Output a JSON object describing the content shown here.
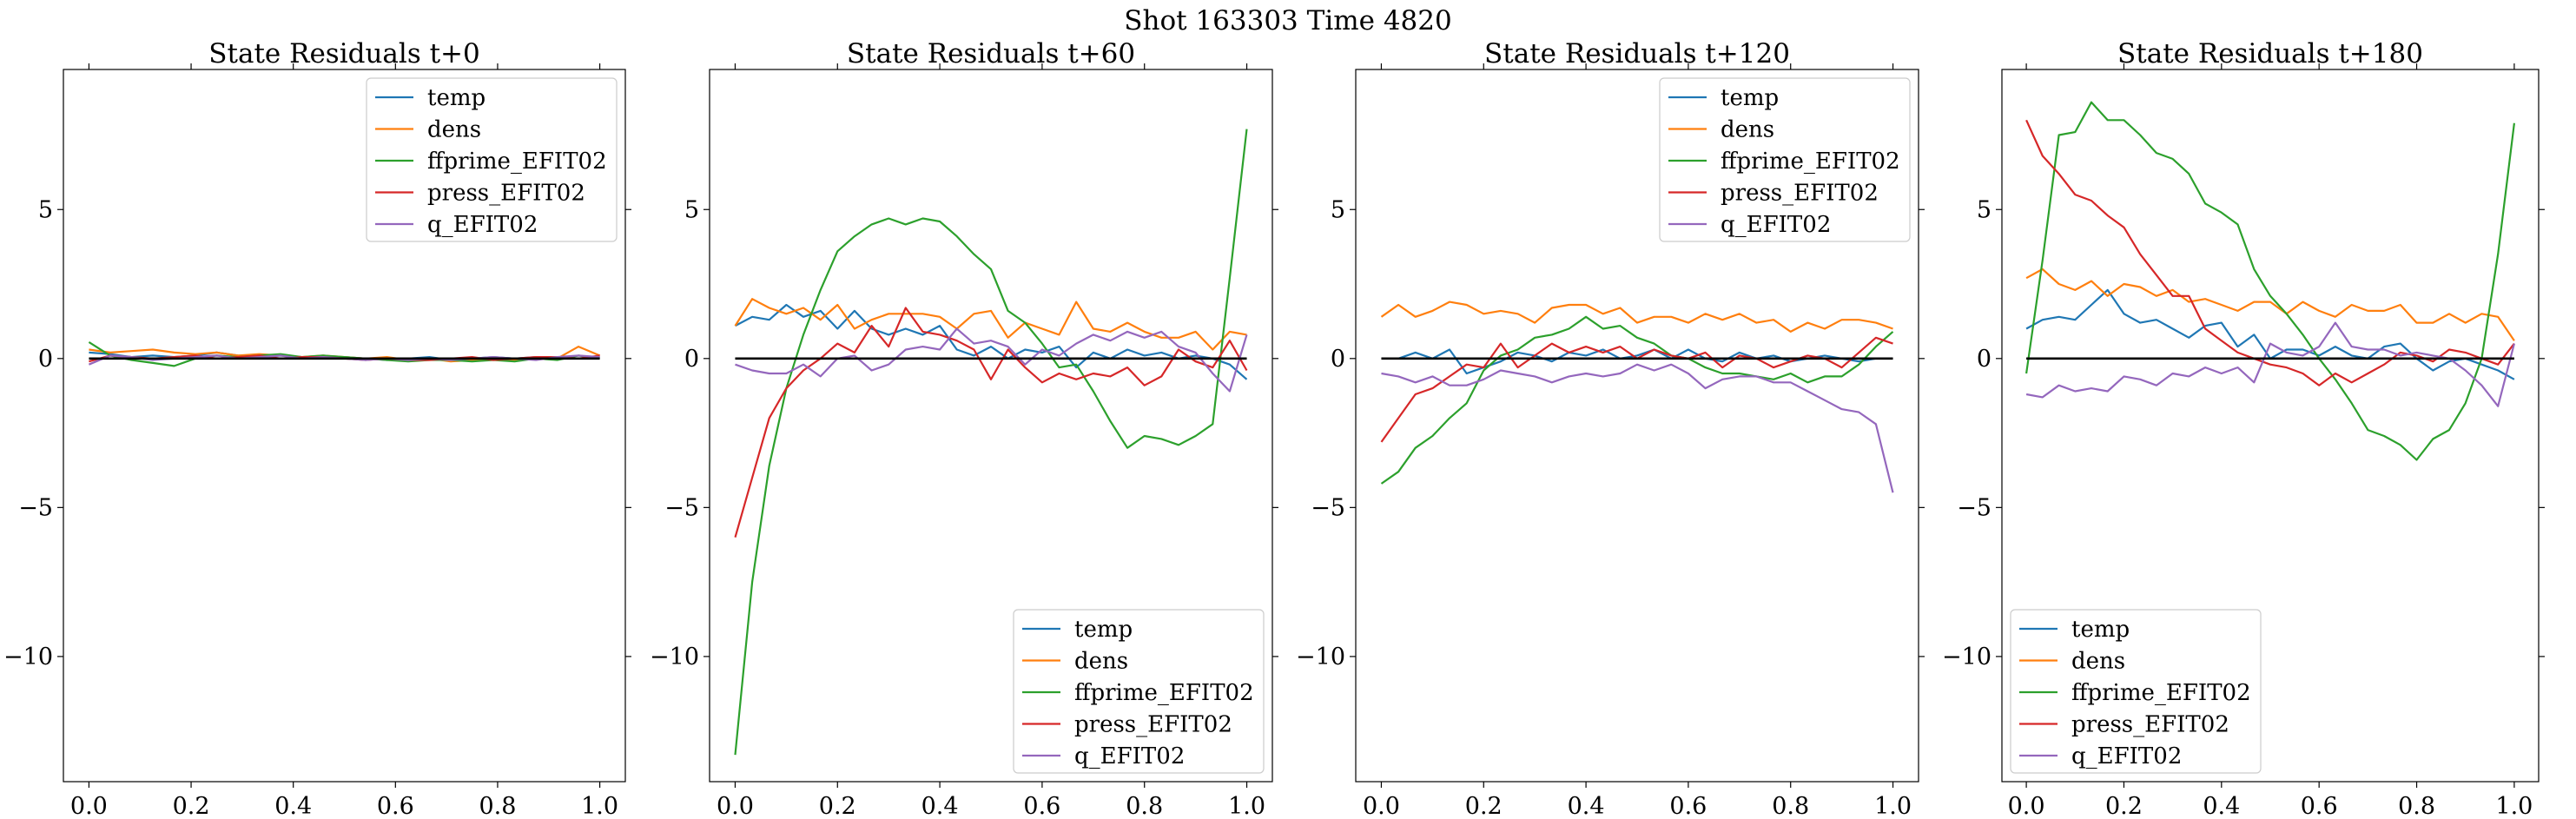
{
  "suptitle": "Shot 163303   Time 4820",
  "colors": {
    "temp": "#1f77b4",
    "dens": "#ff7f0e",
    "ffprime_EFIT02": "#2ca02c",
    "press_EFIT02": "#d62728",
    "q_EFIT02": "#9467bd",
    "zero_line": "#000000"
  },
  "chart_data": [
    {
      "type": "line",
      "title": "State Residuals t+0",
      "xlabel": "",
      "ylabel": "",
      "xlim": [
        -0.05,
        1.05
      ],
      "ylim": [
        -14.2,
        9.7
      ],
      "xticks": [
        "0.0",
        "0.2",
        "0.4",
        "0.6",
        "0.8",
        "1.0"
      ],
      "yticks": [
        "5",
        "0",
        "−5",
        "−10"
      ],
      "ytick_values": [
        5,
        0,
        -5,
        -10
      ],
      "legend_loc": "upper-right",
      "grid": false,
      "zero_line": true,
      "x": [
        0,
        0.0417,
        0.0833,
        0.125,
        0.1667,
        0.2083,
        0.25,
        0.2917,
        0.3333,
        0.375,
        0.4167,
        0.4583,
        0.5,
        0.5417,
        0.5833,
        0.625,
        0.6667,
        0.7083,
        0.75,
        0.7917,
        0.8333,
        0.875,
        0.9167,
        0.9583,
        1.0
      ],
      "series": [
        {
          "name": "temp",
          "values": [
            0.2,
            0.15,
            0.05,
            0.1,
            0.05,
            0.1,
            0.2,
            0.1,
            0.05,
            0.1,
            0.05,
            0.0,
            0.05,
            0.0,
            -0.05,
            0.0,
            0.05,
            -0.05,
            0.0,
            0.05,
            0.0,
            0.05,
            0.05,
            0.0,
            0.05
          ]
        },
        {
          "name": "dens",
          "values": [
            0.3,
            0.2,
            0.25,
            0.3,
            0.2,
            0.15,
            0.2,
            0.1,
            0.15,
            0.1,
            0.05,
            0.1,
            0.05,
            0.0,
            0.05,
            -0.05,
            0.0,
            -0.1,
            -0.05,
            0.0,
            -0.05,
            0.05,
            0.0,
            0.4,
            0.1
          ]
        },
        {
          "name": "ffprime_EFIT02",
          "values": [
            0.55,
            0.1,
            -0.05,
            -0.15,
            -0.25,
            0.0,
            0.1,
            0.05,
            0.1,
            0.15,
            0.05,
            0.1,
            0.05,
            0.0,
            -0.05,
            -0.1,
            -0.05,
            -0.05,
            -0.1,
            -0.05,
            -0.1,
            0.0,
            -0.05,
            0.1,
            0.0
          ]
        },
        {
          "name": "press_EFIT02",
          "values": [
            -0.1,
            0.1,
            0.05,
            0.0,
            0.05,
            0.1,
            0.0,
            0.05,
            0.1,
            0.0,
            0.05,
            0.05,
            0.0,
            -0.05,
            0.0,
            -0.05,
            -0.05,
            0.0,
            0.05,
            -0.05,
            0.0,
            0.05,
            0.05,
            0.0,
            0.1
          ]
        },
        {
          "name": "q_EFIT02",
          "values": [
            -0.2,
            0.1,
            0.05,
            -0.05,
            0.0,
            0.05,
            0.1,
            0.0,
            0.05,
            0.1,
            0.0,
            0.05,
            0.0,
            -0.05,
            0.0,
            -0.05,
            0.0,
            -0.05,
            0.0,
            0.05,
            0.0,
            -0.05,
            0.05,
            0.1,
            0.05
          ]
        }
      ]
    },
    {
      "type": "line",
      "title": "State Residuals t+60",
      "xlabel": "",
      "ylabel": "",
      "xlim": [
        -0.05,
        1.05
      ],
      "ylim": [
        -14.2,
        9.7
      ],
      "xticks": [
        "0.0",
        "0.2",
        "0.4",
        "0.6",
        "0.8",
        "1.0"
      ],
      "yticks": [
        "5",
        "0",
        "−5",
        "−10"
      ],
      "ytick_values": [
        5,
        0,
        -5,
        -10
      ],
      "legend_loc": "lower-right",
      "grid": false,
      "zero_line": true,
      "x": [
        0,
        0.0333,
        0.0667,
        0.1,
        0.1333,
        0.1667,
        0.2,
        0.2333,
        0.2667,
        0.3,
        0.3333,
        0.3667,
        0.4,
        0.4333,
        0.4667,
        0.5,
        0.5333,
        0.5667,
        0.6,
        0.6333,
        0.6667,
        0.7,
        0.7333,
        0.7667,
        0.8,
        0.8333,
        0.8667,
        0.9,
        0.9333,
        0.9667,
        1.0
      ],
      "series": [
        {
          "name": "temp",
          "values": [
            1.1,
            1.4,
            1.3,
            1.8,
            1.4,
            1.6,
            1.0,
            1.6,
            1.0,
            0.8,
            1.0,
            0.8,
            1.1,
            0.3,
            0.1,
            0.4,
            0.0,
            0.3,
            0.2,
            0.4,
            -0.3,
            0.2,
            0.0,
            0.3,
            0.1,
            0.2,
            0.0,
            0.1,
            0.0,
            -0.2,
            -0.7
          ]
        },
        {
          "name": "dens",
          "values": [
            1.1,
            2.0,
            1.7,
            1.5,
            1.7,
            1.3,
            1.8,
            1.0,
            1.3,
            1.5,
            1.5,
            1.5,
            1.4,
            1.0,
            1.5,
            1.6,
            0.7,
            1.2,
            1.0,
            0.8,
            1.9,
            1.0,
            0.9,
            1.2,
            0.9,
            0.7,
            0.7,
            0.9,
            0.3,
            0.9,
            0.8
          ]
        },
        {
          "name": "ffprime_EFIT02",
          "values": [
            -13.3,
            -7.5,
            -3.6,
            -1.0,
            0.8,
            2.3,
            3.6,
            4.1,
            4.5,
            4.7,
            4.5,
            4.7,
            4.6,
            4.1,
            3.5,
            3.0,
            1.6,
            1.2,
            0.5,
            -0.3,
            -0.2,
            -1.1,
            -2.1,
            -3.0,
            -2.6,
            -2.7,
            -2.9,
            -2.6,
            -2.2,
            2.7,
            7.7
          ]
        },
        {
          "name": "press_EFIT02",
          "values": [
            -6.0,
            -4.0,
            -2.0,
            -1.0,
            -0.4,
            0.0,
            0.5,
            0.2,
            1.1,
            0.4,
            1.7,
            0.9,
            0.8,
            0.6,
            0.3,
            -0.7,
            0.3,
            -0.3,
            -0.8,
            -0.5,
            -0.7,
            -0.5,
            -0.6,
            -0.3,
            -0.9,
            -0.6,
            0.3,
            -0.1,
            -0.3,
            0.6,
            -0.4
          ]
        },
        {
          "name": "q_EFIT02",
          "values": [
            -0.2,
            -0.4,
            -0.5,
            -0.5,
            -0.2,
            -0.6,
            0.0,
            0.1,
            -0.4,
            -0.2,
            0.3,
            0.4,
            0.3,
            1.0,
            0.5,
            0.6,
            0.4,
            -0.2,
            0.3,
            0.1,
            0.5,
            0.8,
            0.6,
            0.9,
            0.7,
            0.9,
            0.4,
            0.2,
            -0.5,
            -1.1,
            0.8
          ]
        }
      ]
    },
    {
      "type": "line",
      "title": "State Residuals t+120",
      "xlabel": "",
      "ylabel": "",
      "xlim": [
        -0.05,
        1.05
      ],
      "ylim": [
        -14.2,
        9.7
      ],
      "xticks": [
        "0.0",
        "0.2",
        "0.4",
        "0.6",
        "0.8",
        "1.0"
      ],
      "yticks": [
        "5",
        "0",
        "−5",
        "−10"
      ],
      "ytick_values": [
        5,
        0,
        -5,
        -10
      ],
      "legend_loc": "upper-right",
      "grid": false,
      "zero_line": true,
      "x": [
        0,
        0.0333,
        0.0667,
        0.1,
        0.1333,
        0.1667,
        0.2,
        0.2333,
        0.2667,
        0.3,
        0.3333,
        0.3667,
        0.4,
        0.4333,
        0.4667,
        0.5,
        0.5333,
        0.5667,
        0.6,
        0.6333,
        0.6667,
        0.7,
        0.7333,
        0.7667,
        0.8,
        0.8333,
        0.8667,
        0.9,
        0.9333,
        0.9667,
        1.0
      ],
      "series": [
        {
          "name": "temp",
          "values": [
            0.0,
            0.0,
            0.2,
            0.0,
            0.3,
            -0.5,
            -0.3,
            -0.1,
            0.2,
            0.1,
            -0.1,
            0.2,
            0.1,
            0.3,
            0.0,
            0.1,
            0.3,
            0.0,
            0.3,
            0.0,
            -0.1,
            0.2,
            0.0,
            0.1,
            -0.1,
            0.0,
            0.1,
            0.0,
            -0.1,
            0.0,
            0.0
          ]
        },
        {
          "name": "dens",
          "values": [
            1.4,
            1.8,
            1.4,
            1.6,
            1.9,
            1.8,
            1.5,
            1.6,
            1.5,
            1.2,
            1.7,
            1.8,
            1.8,
            1.5,
            1.7,
            1.2,
            1.4,
            1.4,
            1.2,
            1.5,
            1.3,
            1.5,
            1.2,
            1.3,
            0.9,
            1.2,
            1.0,
            1.3,
            1.3,
            1.2,
            1.0
          ]
        },
        {
          "name": "ffprime_EFIT02",
          "values": [
            -4.2,
            -3.8,
            -3.0,
            -2.6,
            -2.0,
            -1.5,
            -0.4,
            0.1,
            0.3,
            0.7,
            0.8,
            1.0,
            1.4,
            1.0,
            1.1,
            0.7,
            0.5,
            0.1,
            0.0,
            -0.3,
            -0.5,
            -0.5,
            -0.6,
            -0.7,
            -0.5,
            -0.8,
            -0.6,
            -0.6,
            -0.2,
            0.4,
            0.9
          ]
        },
        {
          "name": "press_EFIT02",
          "values": [
            -2.8,
            -2.0,
            -1.2,
            -1.0,
            -0.6,
            -0.2,
            -0.3,
            0.5,
            -0.3,
            0.1,
            0.5,
            0.2,
            0.4,
            0.2,
            0.4,
            0.0,
            0.3,
            0.1,
            0.0,
            0.2,
            -0.3,
            0.1,
            0.0,
            -0.3,
            -0.1,
            0.1,
            0.0,
            -0.3,
            0.2,
            0.7,
            0.5
          ]
        },
        {
          "name": "q_EFIT02",
          "values": [
            -0.5,
            -0.6,
            -0.8,
            -0.6,
            -0.9,
            -0.9,
            -0.7,
            -0.4,
            -0.5,
            -0.6,
            -0.8,
            -0.6,
            -0.5,
            -0.6,
            -0.5,
            -0.2,
            -0.4,
            -0.2,
            -0.5,
            -1.0,
            -0.7,
            -0.6,
            -0.6,
            -0.8,
            -0.8,
            -1.1,
            -1.4,
            -1.7,
            -1.8,
            -2.2,
            -4.5
          ]
        }
      ]
    },
    {
      "type": "line",
      "title": "State Residuals t+180",
      "xlabel": "",
      "ylabel": "",
      "xlim": [
        -0.05,
        1.05
      ],
      "ylim": [
        -14.2,
        9.7
      ],
      "xticks": [
        "0.0",
        "0.2",
        "0.4",
        "0.6",
        "0.8",
        "1.0"
      ],
      "yticks": [
        "5",
        "0",
        "−5",
        "−10"
      ],
      "ytick_values": [
        5,
        0,
        -5,
        -10
      ],
      "legend_loc": "lower-left",
      "grid": false,
      "zero_line": true,
      "x": [
        0,
        0.0333,
        0.0667,
        0.1,
        0.1333,
        0.1667,
        0.2,
        0.2333,
        0.2667,
        0.3,
        0.3333,
        0.3667,
        0.4,
        0.4333,
        0.4667,
        0.5,
        0.5333,
        0.5667,
        0.6,
        0.6333,
        0.6667,
        0.7,
        0.7333,
        0.7667,
        0.8,
        0.8333,
        0.8667,
        0.9,
        0.9333,
        0.9667,
        1.0
      ],
      "series": [
        {
          "name": "temp",
          "values": [
            1.0,
            1.3,
            1.4,
            1.3,
            1.8,
            2.3,
            1.5,
            1.2,
            1.3,
            1.0,
            0.7,
            1.1,
            1.2,
            0.4,
            0.8,
            0.0,
            0.3,
            0.3,
            0.1,
            0.4,
            0.1,
            0.0,
            0.4,
            0.5,
            0.0,
            -0.4,
            -0.1,
            0.0,
            -0.2,
            -0.4,
            -0.7
          ]
        },
        {
          "name": "dens",
          "values": [
            2.7,
            3.0,
            2.5,
            2.3,
            2.6,
            2.1,
            2.5,
            2.4,
            2.1,
            2.3,
            1.9,
            2.0,
            1.8,
            1.6,
            1.9,
            1.9,
            1.5,
            1.9,
            1.6,
            1.4,
            1.8,
            1.6,
            1.6,
            1.8,
            1.2,
            1.2,
            1.5,
            1.2,
            1.5,
            1.4,
            0.6
          ]
        },
        {
          "name": "ffprime_EFIT02",
          "values": [
            -0.5,
            3.3,
            7.5,
            7.6,
            8.6,
            8.0,
            8.0,
            7.5,
            6.9,
            6.7,
            6.2,
            5.2,
            4.9,
            4.5,
            3.0,
            2.1,
            1.5,
            0.8,
            0.0,
            -0.7,
            -1.5,
            -2.4,
            -2.6,
            -2.9,
            -3.4,
            -2.7,
            -2.4,
            -1.5,
            0.0,
            3.5,
            7.9
          ]
        },
        {
          "name": "press_EFIT02",
          "values": [
            8.0,
            6.8,
            6.2,
            5.5,
            5.3,
            4.8,
            4.4,
            3.5,
            2.8,
            2.1,
            2.1,
            1.0,
            0.6,
            0.2,
            0.0,
            -0.2,
            -0.3,
            -0.5,
            -0.9,
            -0.5,
            -0.8,
            -0.5,
            -0.2,
            0.2,
            0.1,
            -0.1,
            0.3,
            0.2,
            0.0,
            -0.2,
            0.5
          ]
        },
        {
          "name": "q_EFIT02",
          "values": [
            -1.2,
            -1.3,
            -0.9,
            -1.1,
            -1.0,
            -1.1,
            -0.6,
            -0.7,
            -0.9,
            -0.5,
            -0.6,
            -0.3,
            -0.5,
            -0.3,
            -0.8,
            0.5,
            0.2,
            0.1,
            0.4,
            1.2,
            0.4,
            0.3,
            0.3,
            0.1,
            0.2,
            0.1,
            0.0,
            -0.4,
            -0.9,
            -1.6,
            0.5
          ]
        }
      ]
    }
  ]
}
